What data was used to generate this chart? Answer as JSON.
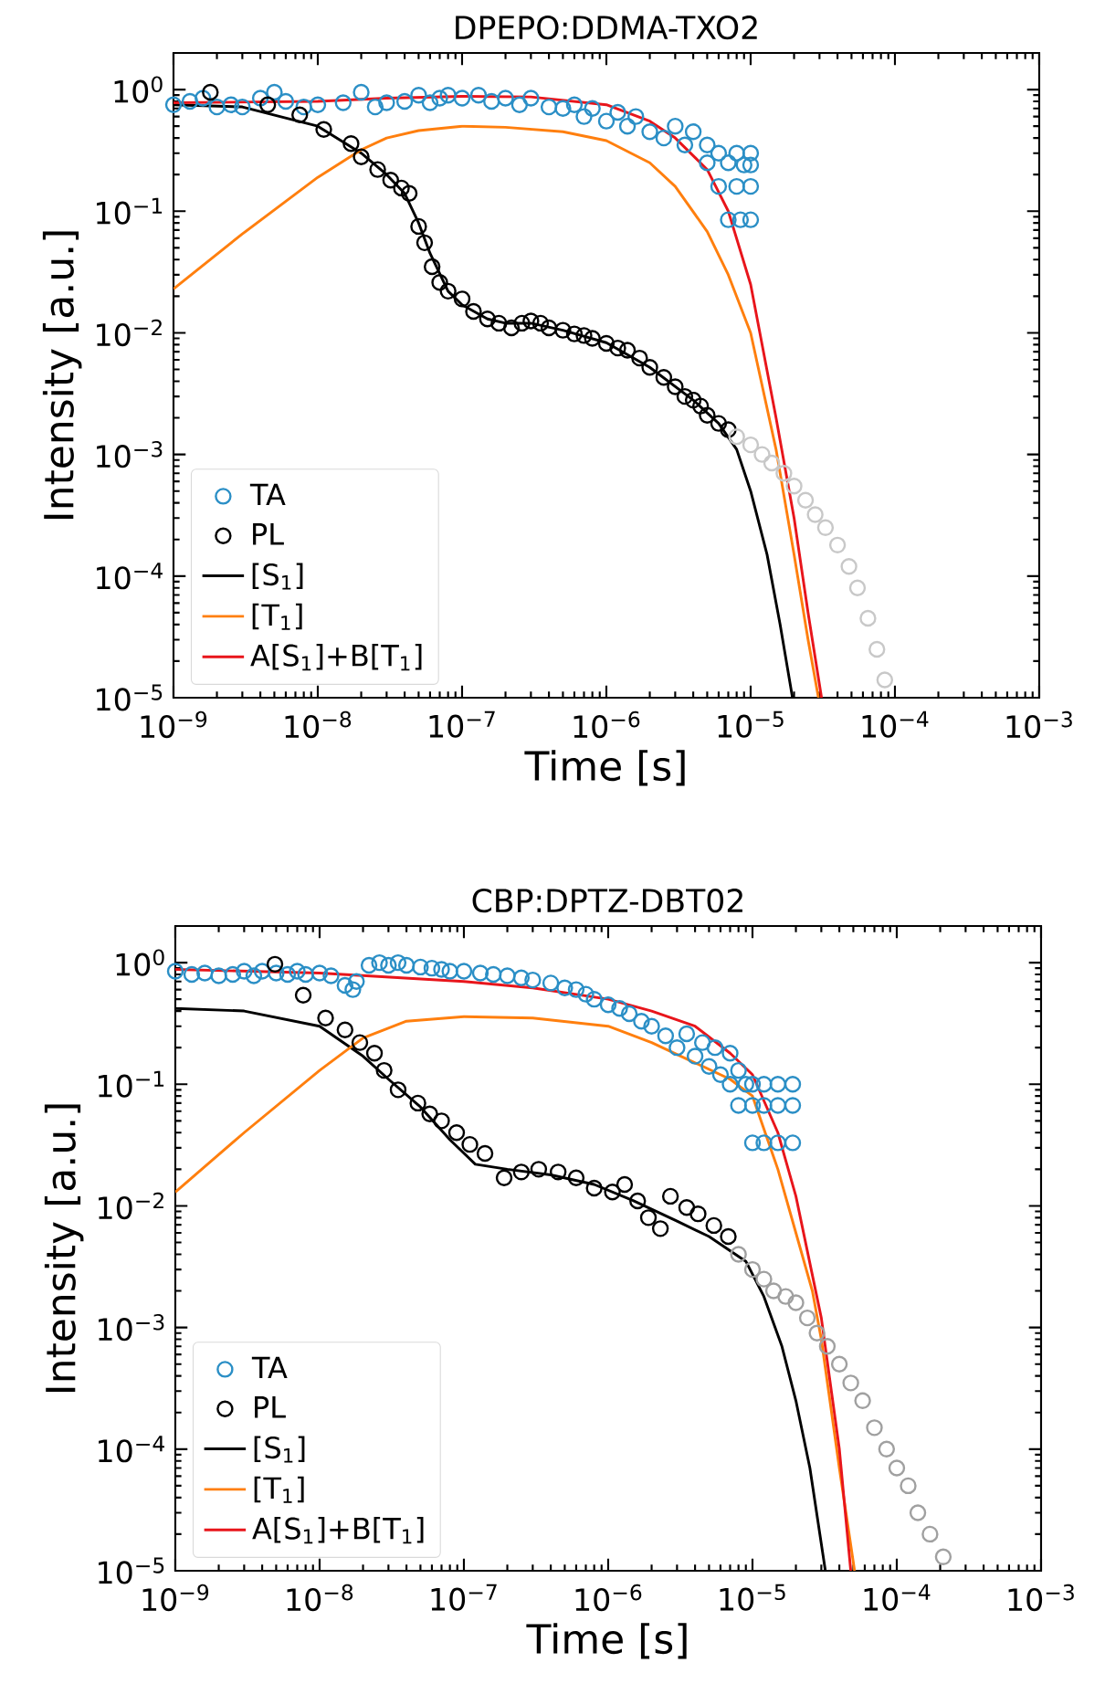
{
  "chart_data": [
    {
      "type": "scatter",
      "title": "DPEPO:DDMA-TXO2",
      "xlabel": "Time [s]",
      "ylabel": "Intensity [a.u.]",
      "log": "xy",
      "legend": "bottom left",
      "xlim": [
        1e-09,
        0.001
      ],
      "ylim": [
        1e-05,
        2
      ],
      "xticks": [
        {
          "value": 1e-09,
          "label": "10$^{−9}$"
        },
        {
          "value": 1e-08,
          "label": "10$^{−8}$"
        },
        {
          "value": 1e-07,
          "label": "10$^{−7}$"
        },
        {
          "value": 1e-06,
          "label": "10$^{−6}$"
        },
        {
          "value": 1e-05,
          "label": "10$^{−5}$"
        },
        {
          "value": 0.0001,
          "label": "10$^{−4}$"
        },
        {
          "value": 0.001,
          "label": "10$^{−3}$"
        }
      ],
      "yticks": [
        {
          "value": 1e-05,
          "label": "10$^{−5}$"
        },
        {
          "value": 0.0001,
          "label": "10$^{−4}$"
        },
        {
          "value": 0.001,
          "label": "10$^{−3}$"
        },
        {
          "value": 0.01,
          "label": "10$^{−2}$"
        },
        {
          "value": 0.1,
          "label": "10$^{−1}$"
        },
        {
          "value": 1,
          "label": "10$^{0}$"
        }
      ],
      "series": [
        {
          "name": "TA",
          "marker": "circle",
          "color": "#2b8fc6",
          "x": [
            1e-09,
            1.3e-09,
            1.6e-09,
            2e-09,
            2.5e-09,
            3e-09,
            4e-09,
            5e-09,
            6e-09,
            8e-09,
            1e-08,
            1.5e-08,
            2e-08,
            2.5e-08,
            3e-08,
            4e-08,
            5e-08,
            6e-08,
            7e-08,
            8e-08,
            1e-07,
            1.3e-07,
            1.6e-07,
            2e-07,
            2.5e-07,
            3e-07,
            4e-07,
            5e-07,
            6e-07,
            7e-07,
            8e-07,
            1e-06,
            1.2e-06,
            1.4e-06,
            1.6e-06,
            2e-06,
            2.5e-06,
            3e-06,
            3.5e-06,
            4e-06,
            5e-06,
            5e-06,
            6e-06,
            6e-06,
            7e-06,
            7e-06,
            8e-06,
            8e-06,
            8.5e-06,
            9e-06,
            1e-05,
            1e-05,
            1e-05,
            1e-05
          ],
          "values": [
            0.75,
            0.8,
            0.85,
            0.72,
            0.75,
            0.72,
            0.85,
            0.95,
            0.8,
            0.72,
            0.75,
            0.78,
            0.95,
            0.72,
            0.78,
            0.8,
            0.9,
            0.78,
            0.85,
            0.9,
            0.85,
            0.9,
            0.8,
            0.85,
            0.75,
            0.85,
            0.72,
            0.7,
            0.75,
            0.6,
            0.7,
            0.55,
            0.65,
            0.5,
            0.6,
            0.45,
            0.4,
            0.5,
            0.35,
            0.45,
            0.35,
            0.25,
            0.3,
            0.16,
            0.25,
            0.085,
            0.3,
            0.16,
            0.085,
            0.24,
            0.3,
            0.24,
            0.16,
            0.085
          ]
        },
        {
          "name": "PL",
          "marker": "circle",
          "color": "#000000",
          "x": [
            1.8e-09,
            4.5e-09,
            7.5e-09,
            1.1e-08,
            1.7e-08,
            2e-08,
            2.6e-08,
            3.2e-08,
            3.8e-08,
            4.3e-08,
            5e-08,
            5.5e-08,
            6.2e-08,
            7e-08,
            8e-08,
            1e-07,
            1.2e-07,
            1.5e-07,
            1.8e-07,
            2.2e-07,
            2.6e-07,
            3e-07,
            3.5e-07,
            4e-07,
            5e-07,
            6e-07,
            7e-07,
            8e-07,
            1e-06,
            1.2e-06,
            1.4e-06,
            1.7e-06,
            2e-06,
            2.5e-06,
            3e-06,
            3.5e-06,
            4e-06,
            4.5e-06,
            5e-06,
            6e-06,
            7e-06
          ],
          "values": [
            0.95,
            0.75,
            0.62,
            0.47,
            0.36,
            0.28,
            0.22,
            0.18,
            0.155,
            0.14,
            0.075,
            0.055,
            0.035,
            0.026,
            0.022,
            0.019,
            0.015,
            0.013,
            0.012,
            0.011,
            0.012,
            0.0125,
            0.012,
            0.011,
            0.0105,
            0.0098,
            0.0095,
            0.009,
            0.0082,
            0.0075,
            0.0072,
            0.0062,
            0.0052,
            0.0043,
            0.0036,
            0.003,
            0.0028,
            0.0025,
            0.0021,
            0.0018,
            0.0016
          ]
        },
        {
          "marker": "circle",
          "color": "#c8c8c8",
          "x": [
            8e-06,
            1e-05,
            1.2e-05,
            1.4e-05,
            1.7e-05,
            2e-05,
            2.4e-05,
            2.8e-05,
            3.3e-05,
            4e-05,
            4.8e-05,
            5.5e-05,
            6.5e-05,
            7.5e-05,
            8.5e-05
          ],
          "values": [
            0.0014,
            0.0012,
            0.001,
            0.00085,
            0.0007,
            0.00055,
            0.00042,
            0.00032,
            0.00025,
            0.00018,
            0.00012,
            8e-05,
            4.5e-05,
            2.5e-05,
            1.4e-05
          ]
        },
        {
          "name": "[S$_{1}$]",
          "type": "line",
          "color": "#000000",
          "x": [
            1e-09,
            3e-09,
            1e-08,
            2e-08,
            3e-08,
            4e-08,
            5e-08,
            6e-08,
            8e-08,
            1e-07,
            1.5e-07,
            2e-07,
            3e-07,
            5e-07,
            1e-06,
            2e-06,
            4e-06,
            6e-06,
            8e-06,
            1e-05,
            1.3e-05,
            1.6e-05,
            1.95e-05
          ],
          "values": [
            0.75,
            0.72,
            0.5,
            0.3,
            0.2,
            0.14,
            0.08,
            0.045,
            0.022,
            0.017,
            0.013,
            0.012,
            0.012,
            0.0105,
            0.0083,
            0.0052,
            0.0028,
            0.0018,
            0.0011,
            0.0005,
            0.00015,
            4e-05,
            1e-05
          ]
        },
        {
          "name": "[T$_{1}$]",
          "type": "line",
          "color": "#ff7f0e",
          "x": [
            1e-09,
            3e-09,
            1e-08,
            2e-08,
            3e-08,
            5e-08,
            1e-07,
            2e-07,
            5e-07,
            1e-06,
            2e-06,
            3e-06,
            5e-06,
            7e-06,
            1e-05,
            1.5e-05,
            2e-05,
            2.5e-05,
            2.95e-05
          ],
          "values": [
            0.023,
            0.065,
            0.19,
            0.32,
            0.4,
            0.46,
            0.5,
            0.49,
            0.45,
            0.38,
            0.25,
            0.16,
            0.068,
            0.03,
            0.01,
            0.0011,
            0.00015,
            3e-05,
            1e-05
          ]
        },
        {
          "name": "A[S$_{1}$]+B[T$_{1}$]",
          "type": "line",
          "color": "#e8151b",
          "x": [
            1e-09,
            1e-08,
            3e-08,
            1e-07,
            3e-07,
            1e-06,
            2e-06,
            3e-06,
            5e-06,
            7e-06,
            1e-05,
            1.5e-05,
            2e-05,
            2.5e-05,
            3.1e-05
          ],
          "values": [
            0.78,
            0.8,
            0.85,
            0.88,
            0.87,
            0.75,
            0.55,
            0.4,
            0.22,
            0.1,
            0.025,
            0.002,
            0.0003,
            5e-05,
            1e-05
          ]
        }
      ]
    },
    {
      "type": "scatter",
      "title": "CBP:DPTZ-DBT02",
      "xlabel": "Time [s]",
      "ylabel": "Intensity [a.u.]",
      "log": "xy",
      "legend": "bottom left",
      "xlim": [
        1e-09,
        0.001
      ],
      "ylim": [
        1e-05,
        2
      ],
      "xticks": [
        {
          "value": 1e-09,
          "label": "10$^{−9}$"
        },
        {
          "value": 1e-08,
          "label": "10$^{−8}$"
        },
        {
          "value": 1e-07,
          "label": "10$^{−7}$"
        },
        {
          "value": 1e-06,
          "label": "10$^{−6}$"
        },
        {
          "value": 1e-05,
          "label": "10$^{−5}$"
        },
        {
          "value": 0.0001,
          "label": "10$^{−4}$"
        },
        {
          "value": 0.001,
          "label": "10$^{−3}$"
        }
      ],
      "yticks": [
        {
          "value": 1e-05,
          "label": "10$^{−5}$"
        },
        {
          "value": 0.0001,
          "label": "10$^{−4}$"
        },
        {
          "value": 0.001,
          "label": "10$^{−3}$"
        },
        {
          "value": 0.01,
          "label": "10$^{−2}$"
        },
        {
          "value": 0.1,
          "label": "10$^{−1}$"
        },
        {
          "value": 1,
          "label": "10$^{0}$"
        }
      ],
      "series": [
        {
          "name": "TA",
          "marker": "circle",
          "color": "#2b8fc6",
          "x": [
            1e-09,
            1.3e-09,
            1.6e-09,
            2e-09,
            2.5e-09,
            3e-09,
            3.5e-09,
            4e-09,
            5e-09,
            6e-09,
            7e-09,
            8e-09,
            1e-08,
            1.2e-08,
            1.5e-08,
            1.7e-08,
            1.8e-08,
            2.2e-08,
            2.6e-08,
            3e-08,
            3.5e-08,
            4e-08,
            5e-08,
            6e-08,
            7e-08,
            8e-08,
            1e-07,
            1.3e-07,
            1.6e-07,
            2e-07,
            2.5e-07,
            3e-07,
            4e-07,
            5e-07,
            6e-07,
            7e-07,
            8e-07,
            1e-06,
            1.2e-06,
            1.4e-06,
            1.7e-06,
            2e-06,
            2.5e-06,
            3e-06,
            3.5e-06,
            4e-06,
            4.5e-06,
            5e-06,
            5.5e-06,
            6e-06,
            7e-06,
            7e-06,
            8e-06,
            8e-06,
            9e-06,
            1e-05,
            1e-05,
            1e-05,
            1.2e-05,
            1.2e-05,
            1.2e-05,
            1.5e-05,
            1.5e-05,
            1.5e-05,
            1.9e-05,
            1.9e-05,
            1.9e-05
          ],
          "values": [
            0.85,
            0.8,
            0.82,
            0.78,
            0.8,
            0.85,
            0.78,
            0.85,
            0.82,
            0.8,
            0.85,
            0.8,
            0.82,
            0.78,
            0.65,
            0.6,
            0.7,
            0.95,
            1.0,
            0.95,
            1.0,
            0.95,
            0.92,
            0.9,
            0.88,
            0.85,
            0.85,
            0.82,
            0.8,
            0.78,
            0.75,
            0.72,
            0.68,
            0.62,
            0.6,
            0.55,
            0.5,
            0.45,
            0.42,
            0.38,
            0.33,
            0.3,
            0.25,
            0.2,
            0.26,
            0.17,
            0.22,
            0.14,
            0.2,
            0.12,
            0.18,
            0.1,
            0.13,
            0.067,
            0.1,
            0.1,
            0.067,
            0.033,
            0.1,
            0.067,
            0.033,
            0.1,
            0.067,
            0.033,
            0.1,
            0.067,
            0.033
          ]
        },
        {
          "name": "PL",
          "marker": "circle",
          "color": "#000000",
          "x": [
            4.9e-09,
            7.7e-09,
            1.1e-08,
            1.5e-08,
            1.9e-08,
            2.4e-08,
            2.8e-08,
            3.5e-08,
            4.8e-08,
            5.8e-08,
            7e-08,
            8.9e-08,
            1.1e-07,
            1.4e-07,
            1.9e-07,
            2.5e-07,
            3.3e-07,
            4.5e-07,
            6e-07,
            8e-07,
            1.07e-06,
            1.3e-06,
            1.6e-06,
            1.9e-06,
            2.3e-06,
            2.7e-06,
            3.5e-06,
            4.2e-06,
            5.4e-06,
            6.8e-06
          ],
          "values": [
            0.97,
            0.54,
            0.35,
            0.28,
            0.22,
            0.18,
            0.13,
            0.09,
            0.07,
            0.057,
            0.05,
            0.04,
            0.032,
            0.027,
            0.017,
            0.019,
            0.02,
            0.019,
            0.017,
            0.014,
            0.013,
            0.015,
            0.011,
            0.008,
            0.0065,
            0.012,
            0.0097,
            0.0086,
            0.0069,
            0.0056
          ]
        },
        {
          "marker": "circle",
          "color": "#a0a0a0",
          "x": [
            8e-06,
            1e-05,
            1.2e-05,
            1.4e-05,
            1.7e-05,
            2e-05,
            2.4e-05,
            2.8e-05,
            3.3e-05,
            4e-05,
            4.8e-05,
            5.8e-05,
            7e-05,
            8.5e-05,
            0.0001,
            0.00012,
            0.00014,
            0.00017,
            0.00021
          ],
          "values": [
            0.004,
            0.003,
            0.0025,
            0.002,
            0.0018,
            0.0016,
            0.0012,
            0.0009,
            0.0007,
            0.0005,
            0.00035,
            0.00025,
            0.00015,
            0.0001,
            7e-05,
            5e-05,
            3e-05,
            2e-05,
            1.3e-05
          ]
        },
        {
          "name": "[S$_{1}$]",
          "type": "line",
          "color": "#000000",
          "x": [
            1e-09,
            3e-09,
            1e-08,
            2e-08,
            3e-08,
            5e-08,
            8e-08,
            1.2e-07,
            2e-07,
            4e-07,
            8e-07,
            1.5e-06,
            3e-06,
            5e-06,
            9e-06,
            1.2e-05,
            1.6e-05,
            2e-05,
            2.5e-05,
            3.2e-05
          ],
          "values": [
            0.42,
            0.4,
            0.3,
            0.17,
            0.11,
            0.065,
            0.035,
            0.022,
            0.02,
            0.018,
            0.015,
            0.011,
            0.0075,
            0.0056,
            0.0035,
            0.0018,
            0.0007,
            0.00025,
            7e-05,
            1e-05
          ]
        },
        {
          "name": "[T$_{1}$]",
          "type": "line",
          "color": "#ff7f0e",
          "x": [
            1e-09,
            3e-09,
            1e-08,
            2e-08,
            4e-08,
            1e-07,
            3e-07,
            1e-06,
            2e-06,
            4e-06,
            7e-06,
            1e-05,
            1.5e-05,
            2e-05,
            2.6e-05,
            3e-05,
            4e-05,
            5.1e-05
          ],
          "values": [
            0.013,
            0.04,
            0.13,
            0.24,
            0.33,
            0.36,
            0.35,
            0.3,
            0.22,
            0.15,
            0.11,
            0.08,
            0.02,
            0.006,
            0.002,
            0.0008,
            7e-05,
            1e-05
          ]
        },
        {
          "name": "A[S$_{1}$]+B[T$_{1}$]",
          "type": "line",
          "color": "#e8151b",
          "x": [
            1e-09,
            1e-08,
            1e-07,
            3e-07,
            1e-06,
            2e-06,
            4e-06,
            7e-06,
            1e-05,
            1.5e-05,
            2e-05,
            3e-05,
            4e-05,
            4.8e-05
          ],
          "values": [
            0.88,
            0.82,
            0.7,
            0.62,
            0.5,
            0.4,
            0.3,
            0.18,
            0.12,
            0.04,
            0.012,
            0.0012,
            0.0001,
            1e-05
          ]
        }
      ]
    }
  ]
}
